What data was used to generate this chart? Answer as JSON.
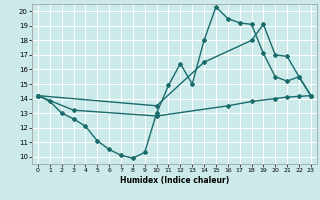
{
  "xlabel": "Humidex (Indice chaleur)",
  "bg_color": "#cceaea",
  "grid_color": "#ffffff",
  "line_color": "#1a6b6b",
  "xlim": [
    -0.5,
    23.5
  ],
  "ylim": [
    9.5,
    20.5
  ],
  "xticks": [
    0,
    1,
    2,
    3,
    4,
    5,
    6,
    7,
    8,
    9,
    10,
    11,
    12,
    13,
    14,
    15,
    16,
    17,
    18,
    19,
    20,
    21,
    22,
    23
  ],
  "yticks": [
    10,
    11,
    12,
    13,
    14,
    15,
    16,
    17,
    18,
    19,
    20
  ],
  "series": [
    {
      "x": [
        0,
        1,
        2,
        3,
        4,
        5,
        6,
        7,
        8,
        9,
        10,
        11,
        12,
        13,
        14,
        15,
        16,
        17,
        18,
        19,
        20,
        21,
        22,
        23
      ],
      "y": [
        14.2,
        13.8,
        13.0,
        12.6,
        12.1,
        11.1,
        10.5,
        10.1,
        9.9,
        10.3,
        13.0,
        14.9,
        16.4,
        15.0,
        18.0,
        20.3,
        19.5,
        19.2,
        19.1,
        17.1,
        15.5,
        15.2,
        15.5,
        14.2
      ],
      "marker": "D",
      "ms": 2.0,
      "lw": 1.0
    },
    {
      "x": [
        0,
        10,
        14,
        18,
        19,
        20,
        21,
        22,
        23
      ],
      "y": [
        14.2,
        13.5,
        16.5,
        18.0,
        19.1,
        17.0,
        16.9,
        15.5,
        14.2
      ],
      "marker": "D",
      "ms": 2.0,
      "lw": 1.0
    },
    {
      "x": [
        0,
        3,
        10,
        16,
        18,
        20,
        21,
        22,
        23
      ],
      "y": [
        14.2,
        13.2,
        12.8,
        13.5,
        13.8,
        14.0,
        14.1,
        14.15,
        14.2
      ],
      "marker": "D",
      "ms": 2.0,
      "lw": 1.0
    }
  ]
}
